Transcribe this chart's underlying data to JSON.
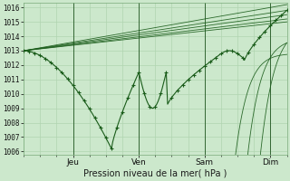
{
  "title": "Pression niveau de la mer( hPa )",
  "xlim": [
    0,
    96
  ],
  "ylim": [
    1006,
    1016
  ],
  "yticks": [
    1006,
    1007,
    1008,
    1009,
    1010,
    1011,
    1012,
    1013,
    1014,
    1015,
    1016
  ],
  "day_labels": [
    "Jeu",
    "Ven",
    "Sam",
    "Dim"
  ],
  "day_positions": [
    18,
    42,
    66,
    90
  ],
  "bg_color": "#cce8cc",
  "grid_color": "#b0d4b0",
  "line_color": "#1a5c1a",
  "marker_color": "#1a5c1a",
  "sep_color": "#336633"
}
